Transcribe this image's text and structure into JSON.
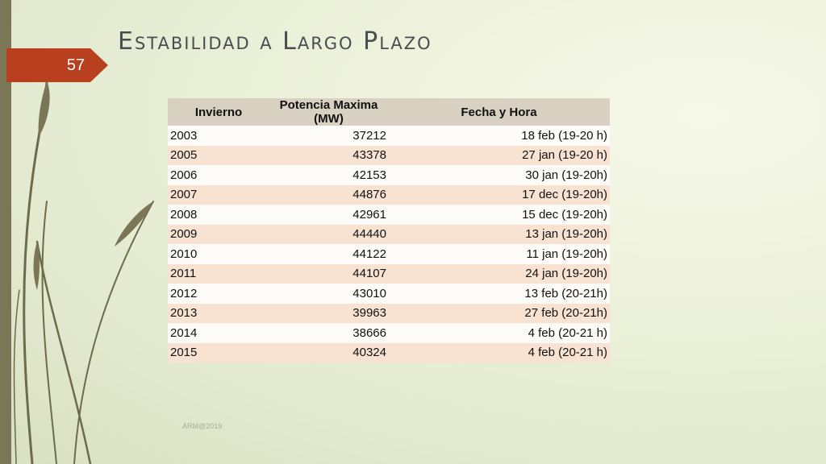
{
  "slide": {
    "title": "Estabilidad a Largo Plazo",
    "page_number": "57",
    "footer": "ARM@2019"
  },
  "colors": {
    "accent": "#b8401e",
    "left_bar": "#7a7656",
    "header_fill": "#d8d1c2",
    "row_odd": "#fcfbf8",
    "row_even": "#f8e3d2"
  },
  "table": {
    "headers": [
      "Invierno",
      "Potencia Maxima (MW)",
      "Fecha y Hora"
    ],
    "rows": [
      [
        "2003",
        "37212",
        "18 feb (19-20 h)"
      ],
      [
        "2005",
        "43378",
        "27 jan (19-20 h)"
      ],
      [
        "2006",
        "42153",
        "30 jan (19-20h)"
      ],
      [
        "2007",
        "44876",
        "17 dec (19-20h)"
      ],
      [
        "2008",
        "42961",
        "15 dec (19-20h)"
      ],
      [
        "2009",
        "44440",
        "13 jan (19-20h)"
      ],
      [
        "2010",
        "44122",
        "11 jan (19-20h)"
      ],
      [
        "2011",
        "44107",
        "24 jan (19-20h)"
      ],
      [
        "2012",
        "43010",
        "13 feb (20-21h)"
      ],
      [
        "2013",
        "39963",
        "27 feb (20-21h)"
      ],
      [
        "2014",
        "38666",
        "4 feb (20-21 h)"
      ],
      [
        "2015",
        "40324",
        "4 feb (20-21 h)"
      ]
    ]
  }
}
